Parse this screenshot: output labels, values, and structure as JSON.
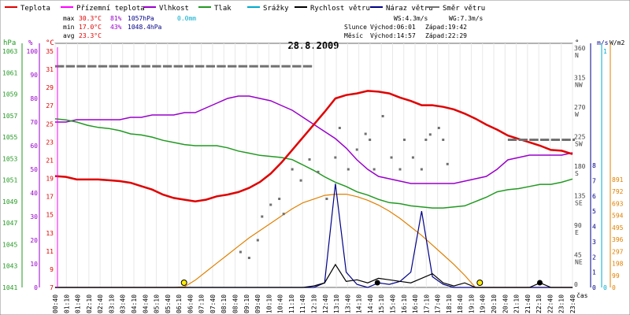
{
  "chart_data": {
    "type": "line",
    "title": "28.8.2009",
    "legend": [
      {
        "label": "Teplota",
        "color": "#e00000"
      },
      {
        "label": "Přízemní teplota",
        "color": "#ff00ff"
      },
      {
        "label": "Vlhkost",
        "color": "#9900cc"
      },
      {
        "label": "Tlak",
        "color": "#229922"
      },
      {
        "label": "Srážky",
        "color": "#00aacc"
      },
      {
        "label": "Rychlost větru",
        "color": "#000000"
      },
      {
        "label": "Náraz větru",
        "color": "#000088"
      },
      {
        "label": "Směr větru",
        "color": "#707070"
      }
    ],
    "stats": {
      "max_label": "max",
      "max_temp": "30.3°C",
      "max_hum": "81%",
      "max_pres": "1057hPa",
      "rain": "0.0mm",
      "min_label": "min",
      "min_temp": "17.0°C",
      "min_hum": "43%",
      "min_pres": "1048.4hPa",
      "avg_label": "avg",
      "avg_temp": "23.3°C",
      "ws": "WS:4.3m/s",
      "wg": "WG:7.3m/s",
      "sun_label": "Slunce",
      "sunrise": "Východ:06:01",
      "sunset": "Západ:19:42",
      "moon_label": "Měsíc",
      "moonrise": "Východ:14:57",
      "moonset": "Západ:22:29"
    },
    "units": {
      "hpa": "hPa",
      "pct": "%",
      "degc": "°C",
      "deg": "°",
      "ms": "m/s",
      "wm2": "W/m2",
      "time": "čas"
    },
    "x_ticks": [
      "00:40",
      "01:10",
      "01:40",
      "02:10",
      "02:40",
      "03:10",
      "03:40",
      "04:10",
      "04:40",
      "05:10",
      "05:40",
      "06:10",
      "06:40",
      "07:10",
      "07:40",
      "08:10",
      "08:40",
      "09:10",
      "09:40",
      "10:10",
      "10:40",
      "11:10",
      "11:40",
      "12:10",
      "12:40",
      "13:10",
      "13:40",
      "14:10",
      "14:40",
      "15:10",
      "15:40",
      "16:10",
      "16:40",
      "17:10",
      "17:40",
      "18:10",
      "18:40",
      "19:10",
      "19:40",
      "20:10",
      "20:40",
      "21:10",
      "21:40",
      "22:10",
      "22:40",
      "23:10",
      "23:40"
    ],
    "axis_hpa": [
      "1063",
      "1061",
      "1059",
      "1057",
      "1055",
      "1053",
      "1051",
      "1049",
      "1047",
      "1045",
      "1043",
      "1041"
    ],
    "axis_pct": [
      "100",
      "90",
      "80",
      "70",
      "60",
      "50",
      "40",
      "30",
      "20",
      "10",
      "0"
    ],
    "axis_degc": [
      "35",
      "31",
      "29",
      "27",
      "25",
      "23",
      "21",
      "19",
      "17",
      "15",
      "13",
      "11",
      "9",
      "7"
    ],
    "axis_dir": [
      "360\nN",
      "315\nNW",
      "270\nW",
      "225\nSW",
      "180\nS",
      "135\nSE",
      "90\nE",
      "45\nNE",
      "0"
    ],
    "axis_dir_labels": [
      [
        "360",
        "N"
      ],
      [
        "315",
        "NW"
      ],
      [
        "270",
        "W"
      ],
      [
        "225",
        "SW"
      ],
      [
        "180",
        "S"
      ],
      [
        "135",
        "SE"
      ],
      [
        "90",
        "E"
      ],
      [
        "45",
        "NE"
      ],
      [
        "0",
        ""
      ]
    ],
    "axis_ms": [
      "8",
      "7",
      "6",
      "5",
      "4",
      "3",
      "2",
      "1",
      "0"
    ],
    "axis_rain": [
      "1",
      "0"
    ],
    "axis_rad": [
      "891",
      "792",
      "693",
      "594",
      "495",
      "396",
      "297",
      "198",
      "99",
      "0"
    ],
    "time_hours": [
      0,
      0.5,
      1,
      1.5,
      2,
      2.5,
      3,
      3.5,
      4,
      4.5,
      5,
      5.5,
      6,
      6.5,
      7,
      7.5,
      8,
      8.5,
      9,
      9.5,
      10,
      10.5,
      11,
      11.5,
      12,
      12.5,
      13,
      13.5,
      14,
      14.5,
      15,
      15.5,
      16,
      16.5,
      17,
      17.5,
      18,
      18.5,
      19,
      19.5,
      20,
      20.5,
      21,
      21.5,
      22,
      22.5,
      23,
      23.5,
      24
    ],
    "temperature_c": [
      20.2,
      20.1,
      19.8,
      19.8,
      19.8,
      19.7,
      19.6,
      19.4,
      19.0,
      18.6,
      18.0,
      17.6,
      17.4,
      17.2,
      17.4,
      17.8,
      18.0,
      18.3,
      18.8,
      19.5,
      20.5,
      21.8,
      23.3,
      24.8,
      26.3,
      27.8,
      29.4,
      29.8,
      30.0,
      30.3,
      30.2,
      30.0,
      29.5,
      29.1,
      28.6,
      28.6,
      28.4,
      28.1,
      27.6,
      27.0,
      26.3,
      25.7,
      25.0,
      24.6,
      24.2,
      23.8,
      23.3,
      23.2,
      22.8
    ],
    "humidity_pct": [
      70,
      70,
      71,
      71,
      71,
      71,
      71,
      72,
      72,
      73,
      73,
      73,
      74,
      74,
      76,
      78,
      80,
      81,
      81,
      80,
      79,
      77,
      75,
      72,
      69,
      66,
      63,
      59,
      54,
      50,
      47,
      46,
      45,
      44,
      44,
      44,
      44,
      44,
      45,
      46,
      47,
      50,
      54,
      55,
      56,
      56,
      56,
      56,
      57
    ],
    "pressure_hpa": [
      1056.7,
      1056.6,
      1056.4,
      1056.1,
      1055.9,
      1055.8,
      1055.6,
      1055.3,
      1055.2,
      1055.0,
      1054.7,
      1054.5,
      1054.3,
      1054.2,
      1054.2,
      1054.2,
      1054.0,
      1053.7,
      1053.5,
      1053.3,
      1053.2,
      1053.1,
      1052.9,
      1052.4,
      1051.9,
      1051.3,
      1050.8,
      1050.4,
      1049.9,
      1049.6,
      1049.2,
      1048.9,
      1048.8,
      1048.6,
      1048.5,
      1048.4,
      1048.4,
      1048.5,
      1048.6,
      1049.0,
      1049.4,
      1049.9,
      1050.1,
      1050.2,
      1050.4,
      1050.6,
      1050.6,
      1050.8,
      1051.1
    ],
    "wind_speed_ms": [
      0,
      0,
      0,
      0,
      0,
      0,
      0,
      0,
      0,
      0,
      0,
      0,
      0,
      0,
      0,
      0,
      0,
      0,
      0,
      0,
      0,
      0,
      0,
      0,
      0.1,
      0.3,
      1.5,
      0.4,
      0.5,
      0.3,
      0.6,
      0.5,
      0.4,
      0.3,
      0.6,
      0.9,
      0.3,
      0.1,
      0.3,
      0,
      0,
      0,
      0,
      0,
      0,
      0.3,
      0,
      0,
      0
    ],
    "wind_gust_ms": [
      0,
      0,
      0,
      0,
      0,
      0,
      0,
      0,
      0,
      0,
      0,
      0,
      0,
      0,
      0,
      0,
      0,
      0,
      0,
      0,
      0,
      0,
      0,
      0,
      0,
      0.3,
      6.8,
      1.0,
      0.2,
      0,
      0.3,
      0.2,
      0.4,
      1.0,
      5.0,
      0.7,
      0.2,
      0,
      0,
      0,
      0,
      0,
      0,
      0,
      0,
      0,
      0,
      0,
      0
    ],
    "solar_radiation_wm2": [
      0,
      0,
      0,
      0,
      0,
      0,
      0,
      0,
      0,
      0,
      0,
      0,
      5,
      60,
      130,
      200,
      270,
      340,
      410,
      470,
      530,
      590,
      650,
      700,
      730,
      760,
      770,
      770,
      750,
      720,
      680,
      630,
      570,
      500,
      430,
      350,
      270,
      190,
      100,
      0,
      0,
      0,
      0,
      0,
      0,
      0,
      0,
      0,
      0
    ],
    "wind_dir_deg": [
      337,
      337,
      337,
      337,
      337,
      337,
      337,
      337,
      337,
      337,
      337,
      337,
      337,
      337,
      337,
      337,
      337,
      337,
      337,
      337,
      337,
      337,
      337,
      337,
      null,
      null,
      null,
      null,
      null,
      null,
      null,
      null,
      null,
      null,
      null,
      null,
      null,
      null,
      null,
      null,
      null,
      null,
      225,
      225,
      225,
      225,
      225,
      225,
      225
    ],
    "wind_dir_scatter": [
      [
        8.6,
        54
      ],
      [
        9.0,
        45
      ],
      [
        9.4,
        72
      ],
      [
        9.6,
        108
      ],
      [
        10.0,
        126
      ],
      [
        10.4,
        135
      ],
      [
        10.6,
        112
      ],
      [
        11.0,
        180
      ],
      [
        11.4,
        163
      ],
      [
        11.8,
        195
      ],
      [
        12.2,
        176
      ],
      [
        12.6,
        135
      ],
      [
        13.0,
        198
      ],
      [
        13.2,
        243
      ],
      [
        13.6,
        180
      ],
      [
        14.0,
        210
      ],
      [
        14.4,
        234
      ],
      [
        14.6,
        225
      ],
      [
        14.8,
        180
      ],
      [
        15.2,
        261
      ],
      [
        15.6,
        198
      ],
      [
        16.0,
        180
      ],
      [
        16.2,
        225
      ],
      [
        16.6,
        198
      ],
      [
        17.0,
        180
      ],
      [
        17.2,
        225
      ],
      [
        17.4,
        233
      ],
      [
        17.8,
        243
      ],
      [
        18.0,
        225
      ],
      [
        18.2,
        188
      ]
    ]
  }
}
